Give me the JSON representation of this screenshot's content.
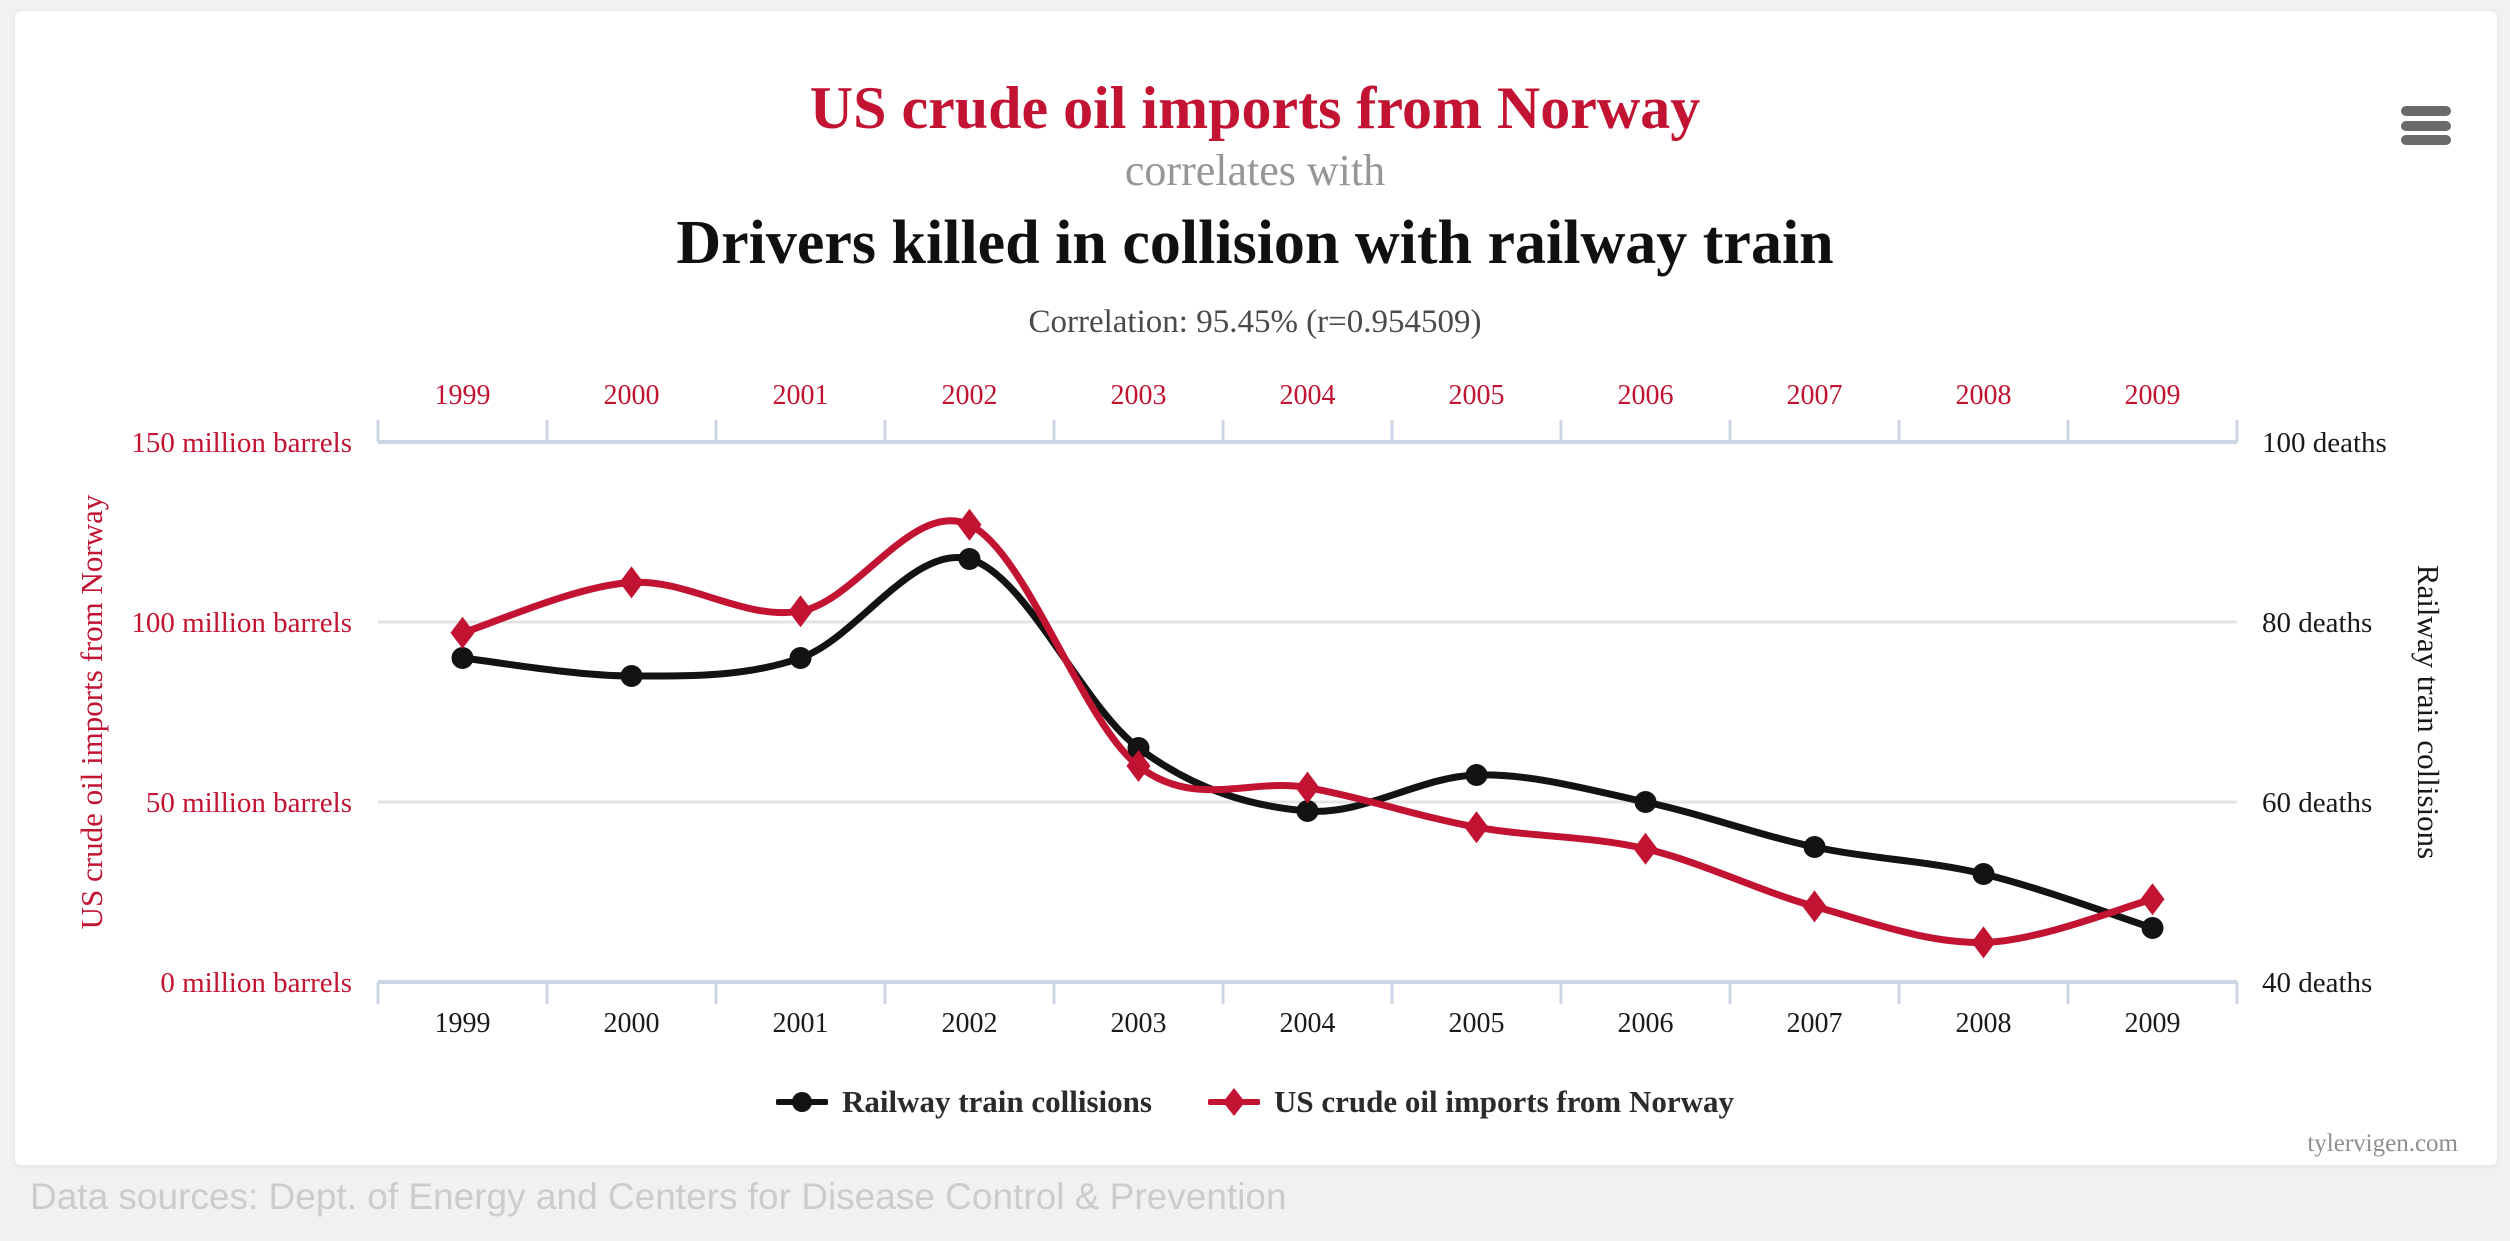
{
  "header": {
    "title": "US crude oil imports from Norway",
    "connector": "correlates with",
    "subtitle": "Drivers killed in collision with railway train",
    "correlation_label": "Correlation: 95.45% (r=0.954509)"
  },
  "colors": {
    "accent_red": "#c21333",
    "series_black": "#131313",
    "axis_line": "#ccd5e3",
    "gridline": "#e3e3e3",
    "bottom_tick_text": "#1a1a1a"
  },
  "chart_data": {
    "type": "line",
    "x": [
      "1999",
      "2000",
      "2001",
      "2002",
      "2003",
      "2004",
      "2005",
      "2006",
      "2007",
      "2008",
      "2009"
    ],
    "series": [
      {
        "name": "Railway train collisions",
        "axis": "right",
        "marker": "circle",
        "color": "#131313",
        "unit": "deaths",
        "values": [
          76,
          74,
          76,
          87,
          66,
          59,
          63,
          60,
          55,
          52,
          46
        ]
      },
      {
        "name": "US crude oil imports from Norway",
        "axis": "left",
        "marker": "diamond",
        "color": "#c21333",
        "unit": "million barrels",
        "values": [
          97,
          111,
          103,
          127,
          60,
          54,
          43,
          37,
          21,
          11,
          23
        ]
      }
    ],
    "left_axis": {
      "title": "US crude oil imports from Norway",
      "range": [
        0,
        150
      ],
      "tick_values": [
        0,
        50,
        100,
        150
      ],
      "tick_labels": [
        "0 million barrels",
        "50 million barrels",
        "100 million barrels",
        "150 million barrels"
      ],
      "grid_values": [
        50,
        100
      ],
      "color": "#c21333"
    },
    "right_axis": {
      "title": "Railway train collisions",
      "range": [
        40,
        100
      ],
      "tick_values": [
        40,
        60,
        80,
        100
      ],
      "tick_labels": [
        "40 deaths",
        "60 deaths",
        "80 deaths",
        "100 deaths"
      ],
      "color": "#1a1a1a"
    },
    "grid": "horizontal gridlines at 50 and 100 million barrels (60 and 80 deaths)",
    "legend_position": "bottom",
    "title": "US crude oil imports from Norway correlates with Drivers killed in collision with railway train",
    "annotation": "Correlation: 95.45% (r=0.954509)"
  },
  "footer": {
    "site": "tylervigen.com",
    "data_sources": "Data sources: Dept. of Energy and Centers for Disease Control & Prevention"
  }
}
